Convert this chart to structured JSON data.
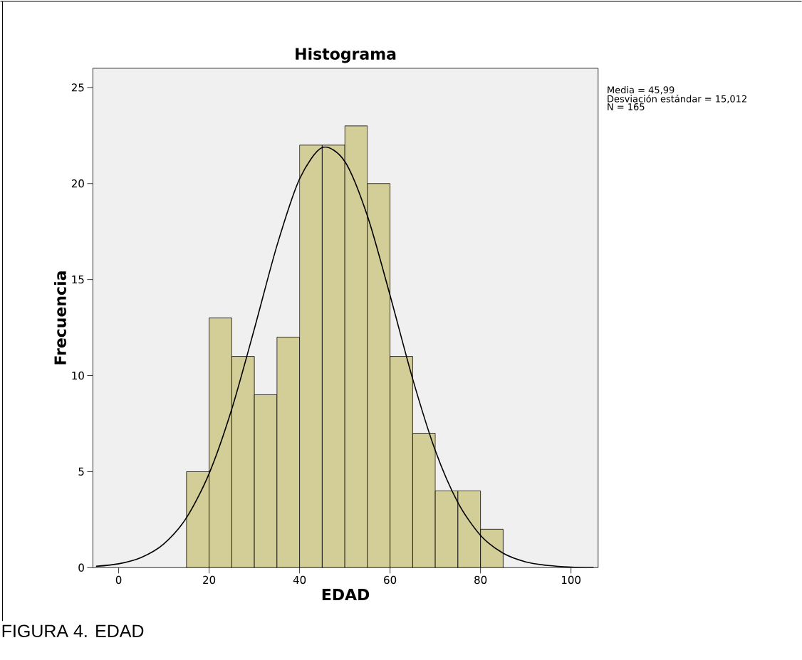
{
  "chart_data": {
    "type": "histogram",
    "title": "Histograma",
    "xlabel": "EDAD",
    "ylabel": "Frecuencia",
    "annotations": [
      "Media = 45,99",
      "Desviación estándar = 15,012",
      "N = 165",
      "FIGURA 4. EDAD"
    ],
    "bins": [
      15,
      20,
      25,
      30,
      35,
      40,
      45,
      50,
      55,
      60,
      65,
      70,
      75,
      80,
      85
    ],
    "series": [
      {
        "color": "#d3ce97",
        "values": [
          5,
          13,
          11,
          9,
          12,
          22,
          22,
          23,
          20,
          11,
          7,
          4,
          4,
          2
        ]
      },
      {
        "type": "line",
        "color": "#000000",
        "x": [
          -5,
          0,
          5,
          10,
          15,
          20,
          25,
          30,
          35,
          40,
          45,
          50,
          55,
          60,
          65,
          70,
          75,
          80,
          85,
          90,
          95,
          100,
          105
        ],
        "values": [
          0.07,
          0.2,
          0.53,
          1.24,
          2.6,
          4.9,
          8.25,
          12.43,
          16.77,
          20.24,
          21.87,
          21.15,
          18.31,
          14.18,
          9.83,
          6.1,
          3.39,
          1.68,
          0.75,
          0.3,
          0.11,
          0.03,
          0.01
        ]
      }
    ],
    "xlim": [
      -5.7,
      106
    ],
    "ylim": [
      0,
      26
    ],
    "xticks": [
      0,
      20,
      40,
      60,
      80,
      100
    ],
    "yticks": [
      0,
      5,
      10,
      15,
      20,
      25
    ],
    "grid": false,
    "line_style": "solid",
    "marker": "none"
  }
}
